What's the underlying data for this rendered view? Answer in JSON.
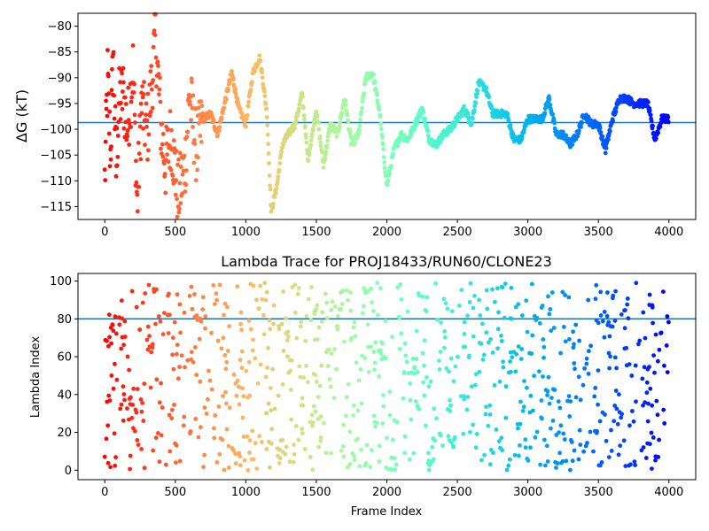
{
  "chart_data": [
    {
      "type": "scatter",
      "ylabel": "ΔG (kT)",
      "xlim": [
        -190,
        4190
      ],
      "ylim": [
        -117.5,
        -77.5
      ],
      "xticks": [
        0,
        500,
        1000,
        1500,
        2000,
        2500,
        3000,
        3500,
        4000
      ],
      "yticks": [
        -80,
        -85,
        -90,
        -95,
        -100,
        -105,
        -110,
        -115
      ],
      "hline": -98.7,
      "hline_color": "#1f77b4",
      "colormap": "rainbow",
      "x_range": [
        0,
        4000
      ],
      "segments": [
        [
          0,
          -110
        ],
        [
          20,
          -90
        ],
        [
          40,
          -105
        ],
        [
          60,
          -85
        ],
        [
          80,
          -108
        ],
        [
          100,
          -95
        ],
        [
          130,
          -93
        ],
        [
          160,
          -100
        ],
        [
          200,
          -88
        ],
        [
          230,
          -115
        ],
        [
          260,
          -95
        ],
        [
          300,
          -101
        ],
        [
          330,
          -92
        ],
        [
          360,
          -82
        ],
        [
          400,
          -100
        ],
        [
          430,
          -107
        ],
        [
          470,
          -101
        ],
        [
          520,
          -113
        ],
        [
          570,
          -107
        ],
        [
          600,
          -93
        ],
        [
          650,
          -104
        ],
        [
          700,
          -98
        ],
        [
          750,
          -97
        ],
        [
          800,
          -101
        ],
        [
          850,
          -95
        ],
        [
          900,
          -89
        ],
        [
          950,
          -96
        ],
        [
          1000,
          -99
        ],
        [
          1050,
          -89
        ],
        [
          1100,
          -86
        ],
        [
          1150,
          -97
        ],
        [
          1180,
          -116
        ],
        [
          1220,
          -111
        ],
        [
          1260,
          -103
        ],
        [
          1300,
          -101
        ],
        [
          1350,
          -99
        ],
        [
          1400,
          -93
        ],
        [
          1440,
          -106
        ],
        [
          1470,
          -101
        ],
        [
          1500,
          -96
        ],
        [
          1550,
          -107
        ],
        [
          1600,
          -99
        ],
        [
          1650,
          -101
        ],
        [
          1700,
          -94
        ],
        [
          1750,
          -103
        ],
        [
          1800,
          -101
        ],
        [
          1850,
          -90
        ],
        [
          1900,
          -89
        ],
        [
          1950,
          -97
        ],
        [
          2000,
          -111
        ],
        [
          2050,
          -104
        ],
        [
          2100,
          -101
        ],
        [
          2150,
          -102
        ],
        [
          2200,
          -99
        ],
        [
          2250,
          -96
        ],
        [
          2300,
          -102
        ],
        [
          2350,
          -103
        ],
        [
          2400,
          -101
        ],
        [
          2450,
          -100
        ],
        [
          2500,
          -98
        ],
        [
          2550,
          -96
        ],
        [
          2600,
          -99
        ],
        [
          2650,
          -91
        ],
        [
          2700,
          -92
        ],
        [
          2750,
          -97
        ],
        [
          2800,
          -97
        ],
        [
          2850,
          -97
        ],
        [
          2900,
          -102
        ],
        [
          2950,
          -102
        ],
        [
          3000,
          -98
        ],
        [
          3050,
          -98
        ],
        [
          3100,
          -98
        ],
        [
          3150,
          -94
        ],
        [
          3200,
          -101
        ],
        [
          3250,
          -101
        ],
        [
          3300,
          -103
        ],
        [
          3350,
          -101
        ],
        [
          3400,
          -97
        ],
        [
          3450,
          -99
        ],
        [
          3500,
          -99
        ],
        [
          3550,
          -104
        ],
        [
          3600,
          -98
        ],
        [
          3650,
          -94
        ],
        [
          3700,
          -94
        ],
        [
          3750,
          -95
        ],
        [
          3800,
          -95
        ],
        [
          3850,
          -95
        ],
        [
          3900,
          -102
        ],
        [
          3950,
          -98
        ],
        [
          4000,
          -98
        ]
      ]
    },
    {
      "type": "scatter",
      "title": "Lambda Trace for PROJ18433/RUN60/CLONE23",
      "xlabel": "Frame Index",
      "ylabel": "Lambda Index",
      "xlim": [
        -190,
        4190
      ],
      "ylim": [
        -5,
        104
      ],
      "xticks": [
        0,
        500,
        1000,
        1500,
        2000,
        2500,
        3000,
        3500,
        4000
      ],
      "yticks": [
        0,
        20,
        40,
        60,
        80,
        100
      ],
      "hline": 80,
      "hline_color": "#1f77b4",
      "colormap": "rainbow",
      "x_range": [
        0,
        4000
      ],
      "value_range": [
        0,
        99
      ]
    }
  ]
}
